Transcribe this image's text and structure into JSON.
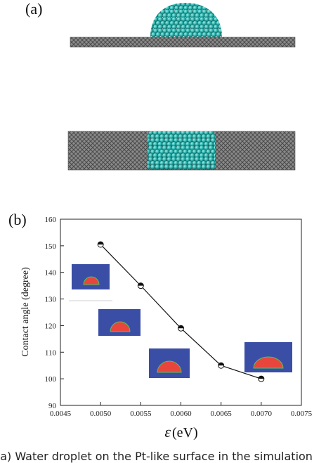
{
  "panel_a": {
    "label": "(a)"
  },
  "panel_b": {
    "label": "(b)"
  },
  "caption": "(a) Water droplet on the Pt-like surface in the simulation",
  "colors": {
    "substrate": "#6e6e6e",
    "molecule": "#2fb5b0",
    "inset_bg": "#3a4ea6",
    "inset_drop": "#e8463c",
    "inset_rim": "#5ac05a"
  },
  "chart_data": {
    "type": "line",
    "x": [
      0.005,
      0.0055,
      0.006,
      0.0065,
      0.007
    ],
    "y": [
      150.5,
      135,
      119,
      105,
      100
    ],
    "xlabel_symbol": "ε",
    "xlabel_unit": "(eV)",
    "ylabel": "Contact angle (degree)",
    "xlim": [
      0.0045,
      0.0075
    ],
    "ylim": [
      90,
      160
    ],
    "xticks": [
      "0.0045",
      "0.0050",
      "0.0055",
      "0.0060",
      "0.0065",
      "0.0070",
      "0.0075"
    ],
    "yticks": [
      "90",
      "100",
      "110",
      "120",
      "130",
      "140",
      "150",
      "160"
    ],
    "grid": false
  }
}
